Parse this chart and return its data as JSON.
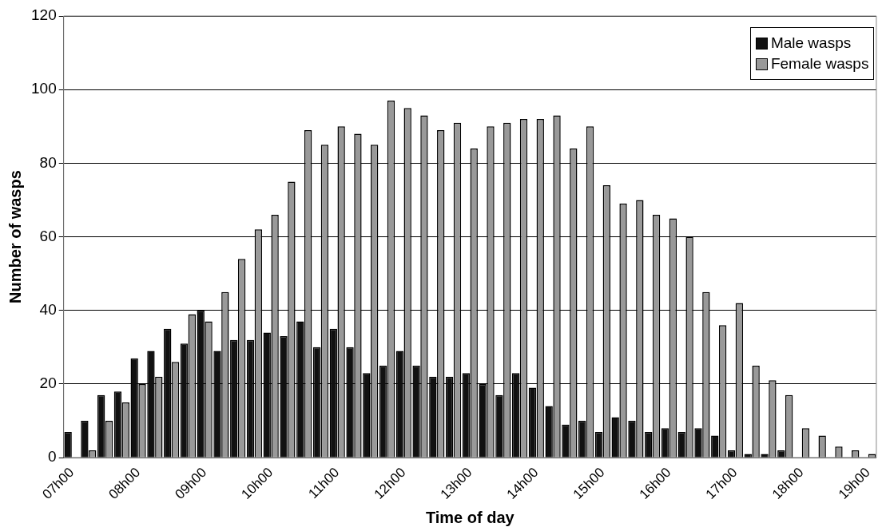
{
  "chart_data": {
    "type": "bar",
    "xlabel": "Time of day",
    "ylabel": "Number of wasps",
    "categories": [
      "07h00",
      null,
      null,
      null,
      "08h00",
      null,
      null,
      null,
      "09h00",
      null,
      null,
      null,
      "10h00",
      null,
      null,
      null,
      "11h00",
      null,
      null,
      null,
      "12h00",
      null,
      null,
      null,
      "13h00",
      null,
      null,
      null,
      "14h00",
      null,
      null,
      null,
      "15h00",
      null,
      null,
      null,
      "16h00",
      null,
      null,
      null,
      "17h00",
      null,
      null,
      null,
      "18h00",
      null,
      null,
      null,
      "19h00"
    ],
    "series": [
      {
        "name": "Male wasps",
        "color": "#111111",
        "values": [
          7,
          10,
          17,
          18,
          27,
          29,
          35,
          31,
          40,
          29,
          32,
          32,
          34,
          33,
          37,
          30,
          35,
          30,
          23,
          25,
          29,
          25,
          22,
          22,
          23,
          20,
          17,
          23,
          19,
          14,
          9,
          10,
          7,
          11,
          10,
          7,
          8,
          7,
          8,
          6,
          2,
          1,
          1,
          2,
          0,
          0,
          0,
          0,
          0
        ]
      },
      {
        "name": "Female wasps",
        "color": "#999999",
        "values": [
          0,
          2,
          10,
          15,
          20,
          22,
          26,
          39,
          37,
          45,
          54,
          62,
          66,
          75,
          89,
          85,
          90,
          88,
          85,
          97,
          95,
          93,
          89,
          91,
          84,
          90,
          91,
          92,
          92,
          93,
          84,
          90,
          74,
          69,
          70,
          66,
          65,
          60,
          45,
          36,
          42,
          25,
          21,
          17,
          8,
          6,
          3,
          2,
          1
        ]
      }
    ],
    "ylim": [
      0,
      120
    ],
    "yticks": [
      0,
      20,
      40,
      60,
      80,
      100,
      120
    ],
    "grid": "y",
    "legend": "top right"
  }
}
